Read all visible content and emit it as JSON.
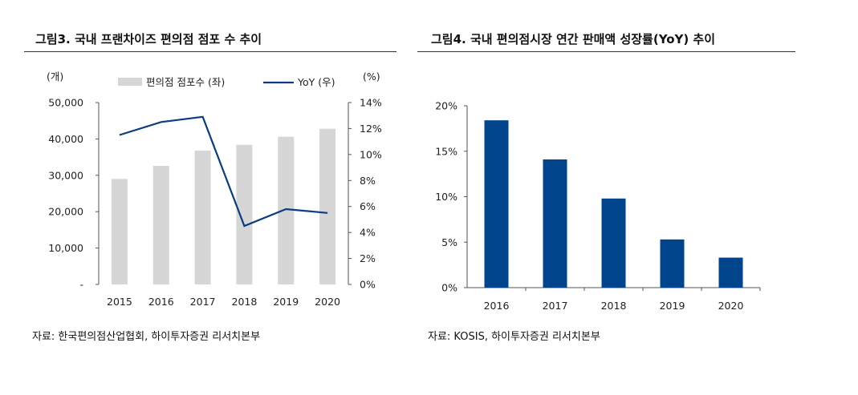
{
  "colors": {
    "bar_gray": "#d6d6d6",
    "line_navy": "#0b3d7e",
    "bar_navy": "#00458c",
    "axis": "#555555"
  },
  "chart_data": [
    {
      "type": "bar+line",
      "title": "그림3. 국내 프랜차이즈 편의점 점포 수 추이",
      "categories": [
        "2015",
        "2016",
        "2017",
        "2018",
        "2019",
        "2020"
      ],
      "left_unit": "(개)",
      "right_unit": "(%)",
      "left_ticks": [
        "-",
        "10,000",
        "20,000",
        "30,000",
        "40,000",
        "50,000"
      ],
      "right_ticks": [
        "0%",
        "2%",
        "4%",
        "6%",
        "8%",
        "10%",
        "12%",
        "14%"
      ],
      "ylim_left": [
        0,
        50000
      ],
      "ylim_right": [
        0,
        14
      ],
      "series": [
        {
          "name": "편의점 점포수 (좌)",
          "kind": "bar",
          "axis": "left",
          "values": [
            29000,
            32600,
            36800,
            38400,
            40600,
            42800
          ]
        },
        {
          "name": "YoY (우)",
          "kind": "line",
          "axis": "right",
          "values": [
            11.5,
            12.5,
            12.9,
            4.5,
            5.8,
            5.5
          ]
        }
      ],
      "source": "자료: 한국편의점산업협회, 하이투자증권 리서치본부"
    },
    {
      "type": "bar",
      "title": "그림4. 국내 편의점시장 연간 판매액 성장률(YoY) 추이",
      "categories": [
        "2016",
        "2017",
        "2018",
        "2019",
        "2020"
      ],
      "y_ticks": [
        "0%",
        "5%",
        "10%",
        "15%",
        "20%"
      ],
      "ylim": [
        0,
        20
      ],
      "values": [
        18.4,
        14.1,
        9.8,
        5.3,
        3.3
      ],
      "source": "자료: KOSIS, 하이투자증권 리서치본부"
    }
  ]
}
